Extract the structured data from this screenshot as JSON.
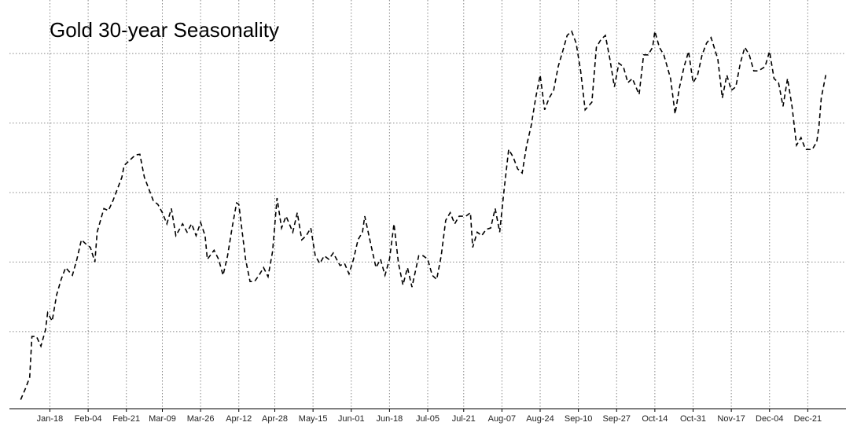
{
  "chart_data": {
    "type": "line",
    "title": "Gold 30-year Seasonality",
    "x": [
      5,
      7,
      9,
      10,
      12,
      14,
      16,
      17,
      19,
      21,
      23,
      25,
      28,
      30,
      32,
      34,
      36,
      38,
      39,
      42,
      44,
      46,
      48,
      50,
      51,
      53,
      56,
      58,
      60,
      62,
      64,
      66,
      68,
      70,
      72,
      74,
      77,
      79,
      81,
      83,
      85,
      87,
      88,
      91,
      93,
      95,
      97,
      99,
      101,
      102,
      105,
      107,
      109,
      111,
      113,
      115,
      117,
      119,
      121,
      123,
      126,
      128,
      130,
      132,
      134,
      136,
      138,
      140,
      142,
      144,
      147,
      149,
      151,
      153,
      155,
      157,
      158,
      161,
      163,
      165,
      167,
      169,
      171,
      173,
      175,
      177,
      179,
      182,
      184,
      186,
      188,
      190,
      192,
      194,
      196,
      198,
      200,
      203,
      205,
      206,
      208,
      210,
      212,
      214,
      216,
      218,
      220,
      222,
      224,
      226,
      228,
      230,
      232,
      234,
      236,
      238,
      240,
      242,
      244,
      246,
      248,
      250,
      252,
      254,
      256,
      259,
      261,
      263,
      265,
      267,
      269,
      271,
      273,
      275,
      277,
      280,
      282,
      284,
      286,
      287,
      289,
      291,
      294,
      296,
      298,
      300,
      302,
      304,
      306,
      308,
      310,
      312,
      315,
      317,
      319,
      321,
      323,
      325,
      327,
      329,
      331,
      333,
      336,
      338,
      340,
      342,
      344,
      346,
      348,
      350,
      352,
      354,
      357,
      359,
      360,
      361,
      363
    ],
    "series": [
      {
        "color": "#000000",
        "values": [
          0.02,
          0.17,
          0.34,
          0.93,
          0.93,
          0.79,
          1.02,
          1.27,
          1.15,
          1.53,
          1.75,
          1.92,
          1.81,
          2.04,
          2.32,
          2.26,
          2.21,
          2.0,
          2.43,
          2.77,
          2.74,
          2.88,
          3.05,
          3.22,
          3.39,
          3.45,
          3.54,
          3.55,
          3.22,
          3.05,
          2.88,
          2.83,
          2.71,
          2.55,
          2.77,
          2.38,
          2.55,
          2.43,
          2.55,
          2.38,
          2.57,
          2.38,
          2.04,
          2.17,
          2.04,
          1.81,
          2.09,
          2.49,
          2.85,
          2.83,
          2.04,
          1.72,
          1.72,
          1.81,
          1.92,
          1.79,
          2.15,
          2.92,
          2.49,
          2.66,
          2.43,
          2.71,
          2.32,
          2.38,
          2.49,
          2.09,
          1.98,
          2.09,
          2.04,
          2.13,
          1.95,
          1.98,
          1.83,
          2.04,
          2.32,
          2.43,
          2.66,
          2.21,
          1.92,
          2.04,
          1.81,
          2.04,
          2.55,
          1.98,
          1.67,
          1.92,
          1.64,
          2.09,
          2.09,
          2.04,
          1.81,
          1.75,
          2.09,
          2.6,
          2.71,
          2.55,
          2.66,
          2.66,
          2.71,
          2.21,
          2.43,
          2.38,
          2.47,
          2.49,
          2.77,
          2.43,
          3.05,
          3.62,
          3.51,
          3.34,
          3.28,
          3.68,
          3.96,
          4.36,
          4.69,
          4.19,
          4.36,
          4.47,
          4.81,
          5.03,
          5.26,
          5.32,
          5.15,
          4.75,
          4.19,
          4.3,
          5.09,
          5.2,
          5.26,
          4.92,
          4.52,
          4.86,
          4.81,
          4.58,
          4.64,
          4.41,
          4.98,
          4.98,
          5.09,
          5.32,
          5.09,
          4.98,
          4.64,
          4.13,
          4.52,
          4.81,
          5.03,
          4.58,
          4.69,
          4.98,
          5.15,
          5.23,
          4.92,
          4.36,
          4.69,
          4.47,
          4.52,
          4.86,
          5.09,
          4.98,
          4.75,
          4.75,
          4.81,
          5.03,
          4.64,
          4.58,
          4.24,
          4.64,
          4.24,
          3.68,
          3.79,
          3.62,
          3.62,
          3.73,
          3.96,
          4.36,
          4.69
        ]
      }
    ],
    "xlim": [
      0,
      372
    ],
    "xticks": [
      {
        "value": 18,
        "label": "Jan-18"
      },
      {
        "value": 35,
        "label": "Feb-04"
      },
      {
        "value": 52,
        "label": "Feb-21"
      },
      {
        "value": 68,
        "label": "Mar-09"
      },
      {
        "value": 85,
        "label": "Mar-26"
      },
      {
        "value": 102,
        "label": "Apr-12"
      },
      {
        "value": 118,
        "label": "Apr-28"
      },
      {
        "value": 135,
        "label": "May-15"
      },
      {
        "value": 152,
        "label": "Jun-01"
      },
      {
        "value": 169,
        "label": "Jun-18"
      },
      {
        "value": 186,
        "label": "Jul-05"
      },
      {
        "value": 202,
        "label": "Jul-21"
      },
      {
        "value": 219,
        "label": "Aug-07"
      },
      {
        "value": 236,
        "label": "Aug-24"
      },
      {
        "value": 253,
        "label": "Sep-10"
      },
      {
        "value": 270,
        "label": "Sep-27"
      },
      {
        "value": 287,
        "label": "Oct-14"
      },
      {
        "value": 304,
        "label": "Oct-31"
      },
      {
        "value": 321,
        "label": "Nov-17"
      },
      {
        "value": 338,
        "label": "Dec-04"
      },
      {
        "value": 355,
        "label": "Dec-21"
      }
    ],
    "ylim": [
      -0.11,
      5.77
    ],
    "yticks": [
      1,
      2,
      3,
      4,
      5
    ],
    "grid": true
  }
}
